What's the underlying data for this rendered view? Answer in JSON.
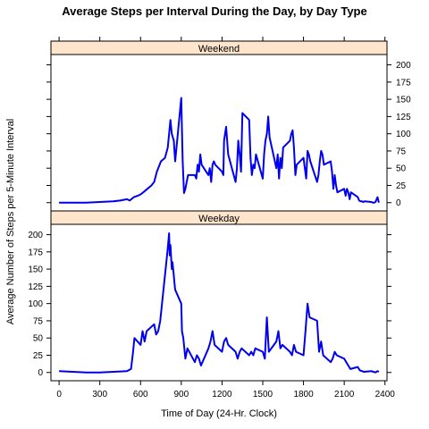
{
  "chart_data": {
    "type": "line",
    "title": "Average Steps per Interval During the Day, by Day Type",
    "xlabel": "Time of Day (24-Hr. Clock)",
    "ylabel": "Average Number of Steps per 5-Minute Interval",
    "xlim": [
      -60,
      2415
    ],
    "ylim": [
      -12,
      215
    ],
    "x_ticks": [
      0,
      300,
      600,
      900,
      1200,
      1500,
      1800,
      2100,
      2400
    ],
    "y_ticks": [
      0,
      25,
      50,
      75,
      100,
      125,
      150,
      175,
      200
    ],
    "grid": false,
    "line_color": "#0000ee",
    "strip_color": "#ffe5cc",
    "panels": [
      {
        "name": "Weekend",
        "y_tick_side": "right",
        "x": [
          0,
          200,
          300,
          400,
          450,
          500,
          520,
          550,
          580,
          600,
          620,
          650,
          680,
          700,
          720,
          750,
          780,
          800,
          820,
          830,
          845,
          850,
          855,
          900,
          910,
          920,
          930,
          940,
          950,
          1000,
          1010,
          1020,
          1030,
          1040,
          1050,
          1100,
          1110,
          1120,
          1130,
          1140,
          1150,
          1200,
          1210,
          1215,
          1230,
          1245,
          1300,
          1310,
          1320,
          1330,
          1340,
          1350,
          1400,
          1410,
          1420,
          1430,
          1440,
          1450,
          1500,
          1510,
          1520,
          1530,
          1540,
          1550,
          1600,
          1610,
          1620,
          1630,
          1640,
          1650,
          1700,
          1710,
          1720,
          1730,
          1740,
          1750,
          1800,
          1810,
          1820,
          1830,
          1840,
          1850,
          1900,
          1910,
          1920,
          1930,
          1940,
          1950,
          2000,
          2010,
          2020,
          2030,
          2040,
          2050,
          2100,
          2110,
          2120,
          2130,
          2140,
          2150,
          2200,
          2210,
          2220,
          2230,
          2240,
          2250,
          2300,
          2310,
          2320,
          2330,
          2345,
          2355
        ],
        "y": [
          0,
          0,
          1,
          2,
          3,
          5,
          3,
          8,
          10,
          12,
          15,
          20,
          25,
          30,
          45,
          60,
          65,
          80,
          120,
          100,
          90,
          75,
          60,
          152,
          60,
          14,
          20,
          30,
          40,
          40,
          35,
          55,
          45,
          70,
          55,
          40,
          50,
          30,
          55,
          60,
          55,
          45,
          40,
          90,
          110,
          70,
          30,
          50,
          90,
          70,
          45,
          130,
          120,
          65,
          40,
          55,
          50,
          70,
          35,
          70,
          90,
          100,
          125,
          95,
          50,
          70,
          35,
          65,
          50,
          80,
          90,
          100,
          105,
          80,
          40,
          55,
          65,
          50,
          35,
          75,
          70,
          60,
          30,
          40,
          60,
          75,
          70,
          55,
          60,
          45,
          20,
          40,
          25,
          15,
          20,
          10,
          20,
          15,
          5,
          15,
          8,
          3,
          2,
          2,
          1,
          2,
          1,
          0,
          0,
          1,
          8,
          0
        ]
      },
      {
        "name": "Weekday",
        "y_tick_side": "left",
        "x": [
          0,
          100,
          200,
          300,
          400,
          500,
          530,
          545,
          555,
          600,
          615,
          630,
          645,
          700,
          715,
          730,
          745,
          800,
          810,
          815,
          820,
          830,
          835,
          845,
          850,
          855,
          900,
          905,
          915,
          930,
          945,
          1000,
          1015,
          1030,
          1045,
          1100,
          1115,
          1130,
          1145,
          1200,
          1215,
          1230,
          1245,
          1300,
          1315,
          1330,
          1345,
          1400,
          1415,
          1430,
          1445,
          1500,
          1515,
          1530,
          1545,
          1600,
          1615,
          1630,
          1645,
          1700,
          1715,
          1730,
          1745,
          1800,
          1815,
          1830,
          1845,
          1900,
          1915,
          1930,
          1945,
          2000,
          2015,
          2030,
          2045,
          2100,
          2115,
          2130,
          2145,
          2200,
          2215,
          2230,
          2245,
          2300,
          2315,
          2330,
          2345,
          2355
        ],
        "y": [
          2,
          1,
          0,
          0,
          1,
          2,
          5,
          30,
          50,
          40,
          60,
          45,
          60,
          70,
          55,
          60,
          75,
          180,
          202,
          170,
          185,
          150,
          160,
          140,
          130,
          120,
          100,
          60,
          50,
          20,
          35,
          15,
          25,
          20,
          10,
          35,
          45,
          60,
          40,
          30,
          45,
          50,
          40,
          30,
          20,
          30,
          35,
          25,
          30,
          25,
          35,
          30,
          20,
          80,
          30,
          45,
          60,
          35,
          40,
          30,
          25,
          40,
          30,
          25,
          60,
          100,
          80,
          75,
          30,
          45,
          25,
          15,
          20,
          30,
          25,
          20,
          15,
          10,
          5,
          8,
          3,
          2,
          1,
          2,
          1,
          0,
          2,
          1
        ]
      }
    ]
  }
}
